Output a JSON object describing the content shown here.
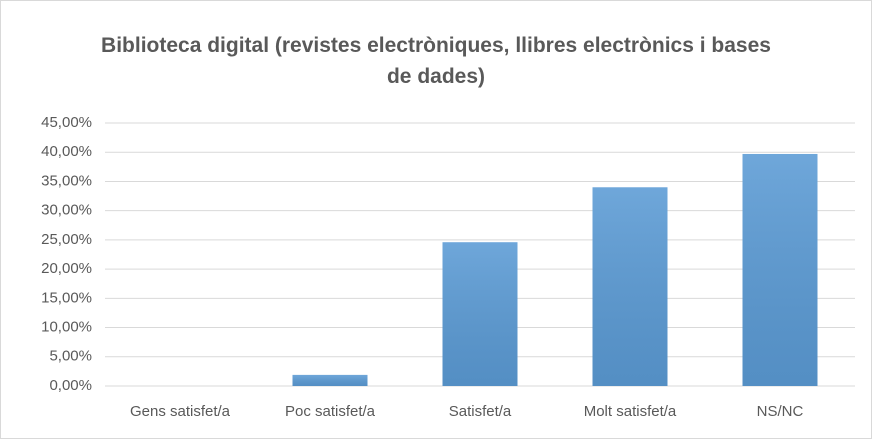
{
  "chart_data": {
    "type": "bar",
    "title": "Biblioteca digital (revistes electròniques, llibres electrònics i bases de dades)",
    "categories": [
      "Gens satisfet/a",
      "Poc satisfet/a",
      "Satisfet/a",
      "Molt satisfet/a",
      "NS/NC"
    ],
    "values": [
      0,
      1.9,
      24.6,
      34.0,
      39.7
    ],
    "color": "#5b9bd5",
    "ylim": [
      0,
      45
    ],
    "yticks": [
      {
        "value": 0,
        "label": "0,00%"
      },
      {
        "value": 5,
        "label": "5,00%"
      },
      {
        "value": 10,
        "label": "10,00%"
      },
      {
        "value": 15,
        "label": "15,00%"
      },
      {
        "value": 20,
        "label": "20,00%"
      },
      {
        "value": 25,
        "label": "25,00%"
      },
      {
        "value": 30,
        "label": "30,00%"
      },
      {
        "value": 35,
        "label": "35,00%"
      },
      {
        "value": 40,
        "label": "40,00%"
      },
      {
        "value": 45,
        "label": "45,00%"
      }
    ],
    "grid": true
  }
}
